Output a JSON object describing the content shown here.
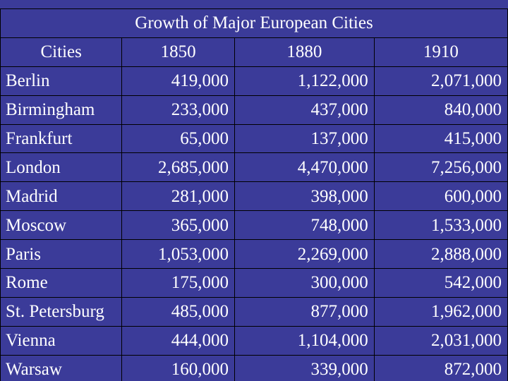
{
  "table": {
    "title": "Growth of Major European Cities",
    "headers": [
      "Cities",
      "1850",
      "1880",
      "1910"
    ],
    "rows": [
      [
        "Berlin",
        "419,000",
        "1,122,000",
        "2,071,000"
      ],
      [
        "Birmingham",
        "233,000",
        "437,000",
        "840,000"
      ],
      [
        "Frankfurt",
        "65,000",
        "137,000",
        "415,000"
      ],
      [
        "London",
        "2,685,000",
        "4,470,000",
        "7,256,000"
      ],
      [
        "Madrid",
        "281,000",
        "398,000",
        "600,000"
      ],
      [
        "Moscow",
        "365,000",
        "748,000",
        "1,533,000"
      ],
      [
        "Paris",
        "1,053,000",
        "2,269,000",
        "2,888,000"
      ],
      [
        "Rome",
        "175,000",
        "300,000",
        "542,000"
      ],
      [
        "St. Petersburg",
        "485,000",
        "877,000",
        "1,962,000"
      ],
      [
        "Vienna",
        "444,000",
        "1,104,000",
        "2,031,000"
      ],
      [
        "Warsaw",
        "160,000",
        "339,000",
        "872,000"
      ]
    ]
  },
  "colors": {
    "background": "#3b3b99",
    "text": "#ffffff",
    "grid": "#000000"
  }
}
